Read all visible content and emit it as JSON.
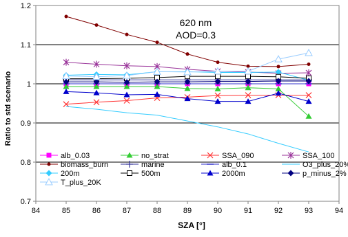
{
  "chart_data": {
    "type": "line",
    "annotation_lines": [
      "620 nm",
      "AOD=0.3"
    ],
    "xlabel": "SZA [°]",
    "ylabel": "Ratio to std scenario",
    "xlim": [
      84,
      94
    ],
    "ylim": [
      0.7,
      1.2
    ],
    "xticks": [
      84,
      85,
      86,
      87,
      88,
      89,
      90,
      91,
      92,
      93,
      94
    ],
    "xtick_labels": [
      "84",
      "85",
      "86",
      "87",
      "88",
      "89",
      "90",
      "91",
      "92",
      "93",
      "94"
    ],
    "yticks": [
      0.7,
      0.8,
      0.9,
      1.0,
      1.1,
      1.2
    ],
    "ytick_labels": [
      "0.7",
      "0.8",
      "0.9",
      "1",
      "1.1",
      "1.2"
    ],
    "grid": "horizontal",
    "legend_position": "bottom",
    "x": [
      85,
      86,
      87,
      88,
      89,
      90,
      91,
      92,
      93
    ],
    "series": [
      {
        "name": "alb_0.03",
        "color": "#ff00ff",
        "marker": "square",
        "values": [
          1.0,
          1.0,
          1.0,
          1.0,
          1.0,
          1.0,
          1.0,
          1.0,
          1.0
        ]
      },
      {
        "name": "no_strat",
        "color": "#33cc33",
        "marker": "triangle",
        "values": [
          0.993,
          0.993,
          0.993,
          0.993,
          0.988,
          0.987,
          0.99,
          0.987,
          0.917
        ]
      },
      {
        "name": "SSA_090",
        "color": "#ff3333",
        "marker": "x",
        "values": [
          0.948,
          0.953,
          0.957,
          0.964,
          0.966,
          0.97,
          0.971,
          0.971,
          0.971
        ]
      },
      {
        "name": "SSA_100",
        "color": "#993399",
        "marker": "star",
        "values": [
          1.055,
          1.05,
          1.046,
          1.044,
          1.037,
          1.032,
          1.03,
          1.027,
          1.028
        ]
      },
      {
        "name": "biomass_burn",
        "color": "#800000",
        "marker": "circle",
        "values": [
          1.172,
          1.15,
          1.126,
          1.106,
          1.076,
          1.055,
          1.045,
          1.044,
          1.05
        ]
      },
      {
        "name": "marine",
        "color": "#333399",
        "marker": "plus",
        "values": [
          1.01,
          1.01,
          1.01,
          1.01,
          1.01,
          1.01,
          1.01,
          1.01,
          1.01
        ]
      },
      {
        "name": "alb_0.1",
        "color": "#3333cc",
        "marker": "dash",
        "values": [
          1.0,
          1.0,
          1.0,
          1.0,
          1.0,
          1.0,
          1.0,
          1.0,
          1.0
        ]
      },
      {
        "name": "O3_plus_20%",
        "color": "#33ccff",
        "marker": "none",
        "values": [
          0.942,
          0.935,
          0.926,
          0.92,
          0.905,
          0.89,
          0.872,
          0.848,
          0.826
        ]
      },
      {
        "name": "200m",
        "color": "#33ccff",
        "marker": "diamond",
        "values": [
          1.022,
          1.024,
          1.023,
          1.031,
          1.031,
          1.029,
          1.029,
          1.03,
          1.009
        ]
      },
      {
        "name": "500m",
        "color": "#000000",
        "marker": "open-square",
        "values": [
          1.013,
          1.013,
          1.014,
          1.016,
          1.019,
          1.019,
          1.019,
          1.018,
          1.014
        ]
      },
      {
        "name": "2000m",
        "color": "#0000cc",
        "marker": "triangle",
        "values": [
          0.98,
          0.977,
          0.972,
          0.973,
          0.962,
          0.955,
          0.955,
          0.976,
          0.955
        ]
      },
      {
        "name": "p_minus_2%",
        "color": "#000080",
        "marker": "diamond",
        "values": [
          1.005,
          1.005,
          1.004,
          1.005,
          1.005,
          1.006,
          1.006,
          1.007,
          1.007
        ]
      },
      {
        "name": "T_plus_20K",
        "color": "#99ccff",
        "marker": "open-triangle",
        "values": [
          1.02,
          1.018,
          1.021,
          1.031,
          1.03,
          1.032,
          1.032,
          1.063,
          1.079
        ]
      }
    ]
  }
}
